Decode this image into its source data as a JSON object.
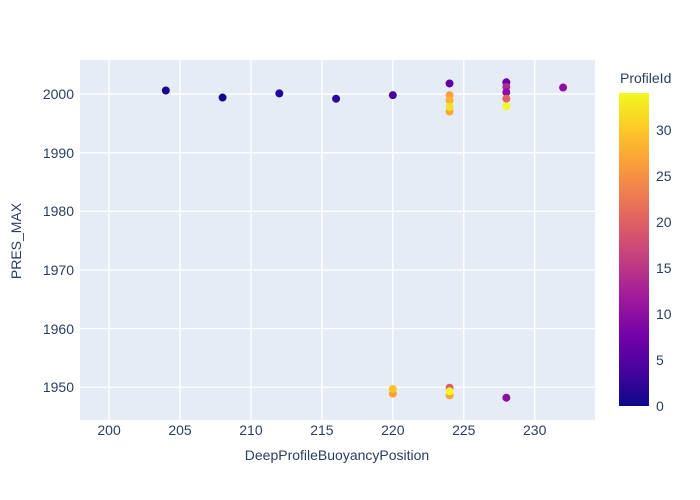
{
  "chart": {
    "x_axis_title": "DeepProfileBuoyancyPosition",
    "y_axis_title": "PRES_MAX",
    "colorbar_title": "ProfileId"
  },
  "colors": {
    "paper_bg": "#ffffff",
    "plot_bg": "#e5ecf6",
    "grid": "#ffffff",
    "text": "#2a3f5f"
  },
  "chart_data": {
    "type": "scatter",
    "title": "",
    "xlabel": "DeepProfileBuoyancyPosition",
    "ylabel": "PRES_MAX",
    "xlim": [
      197.95,
      234.25
    ],
    "ylim": [
      1944.4,
      2005.8
    ],
    "x_ticks": [
      200,
      205,
      210,
      215,
      220,
      225,
      230
    ],
    "y_ticks": [
      1950,
      1960,
      1970,
      1980,
      1990,
      2000
    ],
    "grid": true,
    "marker_size": 8,
    "color_axis": {
      "title": "ProfileId",
      "cmin": 0,
      "cmax": 34,
      "ticks": [
        0,
        5,
        10,
        15,
        20,
        25,
        30
      ],
      "colormap": "plasma",
      "stops": [
        "#0d0887",
        "#46039f",
        "#7201a8",
        "#9c179e",
        "#bd3786",
        "#d8576b",
        "#ed7953",
        "#fb9f3a",
        "#fdca26",
        "#f0f921"
      ]
    },
    "points": [
      {
        "x": 204,
        "y": 2000.6,
        "color": "#1b0790"
      },
      {
        "x": 208,
        "y": 1999.4,
        "color": "#150789"
      },
      {
        "x": 212,
        "y": 2000.1,
        "color": "#23049d"
      },
      {
        "x": 216,
        "y": 1999.2,
        "color": "#2d04a0"
      },
      {
        "x": 220,
        "y": 1999.8,
        "color": "#47039f"
      },
      {
        "x": 224,
        "y": 2001.8,
        "color": "#6001a6"
      },
      {
        "x": 224,
        "y": 1999.8,
        "color": "#fb9f3a"
      },
      {
        "x": 224,
        "y": 1998.9,
        "color": "#fcb22f"
      },
      {
        "x": 224,
        "y": 1997.0,
        "color": "#fca636"
      },
      {
        "x": 224,
        "y": 1997.8,
        "color": "#f4e125"
      },
      {
        "x": 228,
        "y": 2002.0,
        "color": "#6a00a8"
      },
      {
        "x": 228,
        "y": 2001.2,
        "color": "#b12a90"
      },
      {
        "x": 228,
        "y": 2000.3,
        "color": "#8f0da4"
      },
      {
        "x": 228,
        "y": 1999.2,
        "color": "#e16462"
      },
      {
        "x": 228,
        "y": 1997.9,
        "color": "#f0f921"
      },
      {
        "x": 232,
        "y": 2001.1,
        "color": "#8f0da4"
      },
      {
        "x": 220,
        "y": 1948.9,
        "color": "#fb9f3a"
      },
      {
        "x": 220,
        "y": 1949.7,
        "color": "#fcc32c"
      },
      {
        "x": 224,
        "y": 1949.9,
        "color": "#dd5e66"
      },
      {
        "x": 224,
        "y": 1948.6,
        "color": "#fca636"
      },
      {
        "x": 224,
        "y": 1949.3,
        "color": "#f0f921"
      },
      {
        "x": 228,
        "y": 1948.2,
        "color": "#8f0da4"
      }
    ]
  }
}
